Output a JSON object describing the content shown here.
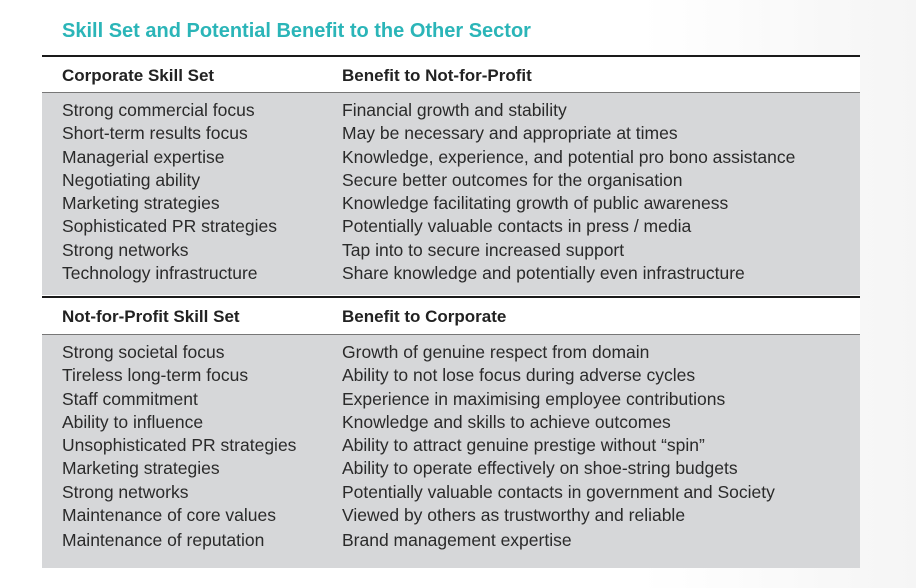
{
  "title": "Skill Set and Potential Benefit to the Other Sector",
  "sections": [
    {
      "header": {
        "col1": "Corporate Skill Set",
        "col2": "Benefit to Not-for-Profit"
      },
      "rows": [
        {
          "skill": "Strong commercial focus",
          "benefit": "Financial growth and stability"
        },
        {
          "skill": "Short-term results focus",
          "benefit": "May be necessary and appropriate at times"
        },
        {
          "skill": "Managerial expertise",
          "benefit": "Knowledge, experience, and potential pro bono assistance"
        },
        {
          "skill": "Negotiating ability",
          "benefit": "Secure better outcomes for the organisation"
        },
        {
          "skill": "Marketing strategies",
          "benefit": "Knowledge facilitating growth of public awareness"
        },
        {
          "skill": "Sophisticated PR strategies",
          "benefit": "Potentially valuable contacts in press / media"
        },
        {
          "skill": "Strong networks",
          "benefit": "Tap into to secure increased support"
        },
        {
          "skill": "Technology infrastructure",
          "benefit": "Share knowledge and potentially even infrastructure"
        }
      ]
    },
    {
      "header": {
        "col1": "Not-for-Profit Skill Set",
        "col2": "Benefit to Corporate"
      },
      "rows": [
        {
          "skill": "Strong societal focus",
          "benefit": "Growth of genuine respect from domain"
        },
        {
          "skill": "Tireless long-term focus",
          "benefit": "Ability to not lose focus during adverse cycles"
        },
        {
          "skill": "Staff commitment",
          "benefit": "Experience in maximising employee contributions"
        },
        {
          "skill": "Ability to influence",
          "benefit": "Knowledge and skills to achieve outcomes"
        },
        {
          "skill": "Unsophisticated PR strategies",
          "benefit": "Ability to attract genuine prestige without “spin”"
        },
        {
          "skill": "Marketing strategies",
          "benefit": "Ability to operate effectively on shoe-string budgets"
        },
        {
          "skill": "Strong networks",
          "benefit": "Potentially valuable contacts in government and Society"
        },
        {
          "skill": "Maintenance of core values",
          "benefit": "Viewed by others as trustworthy and reliable"
        },
        {
          "skill": "Maintenance of reputation",
          "benefit": "Brand management expertise"
        }
      ]
    }
  ]
}
